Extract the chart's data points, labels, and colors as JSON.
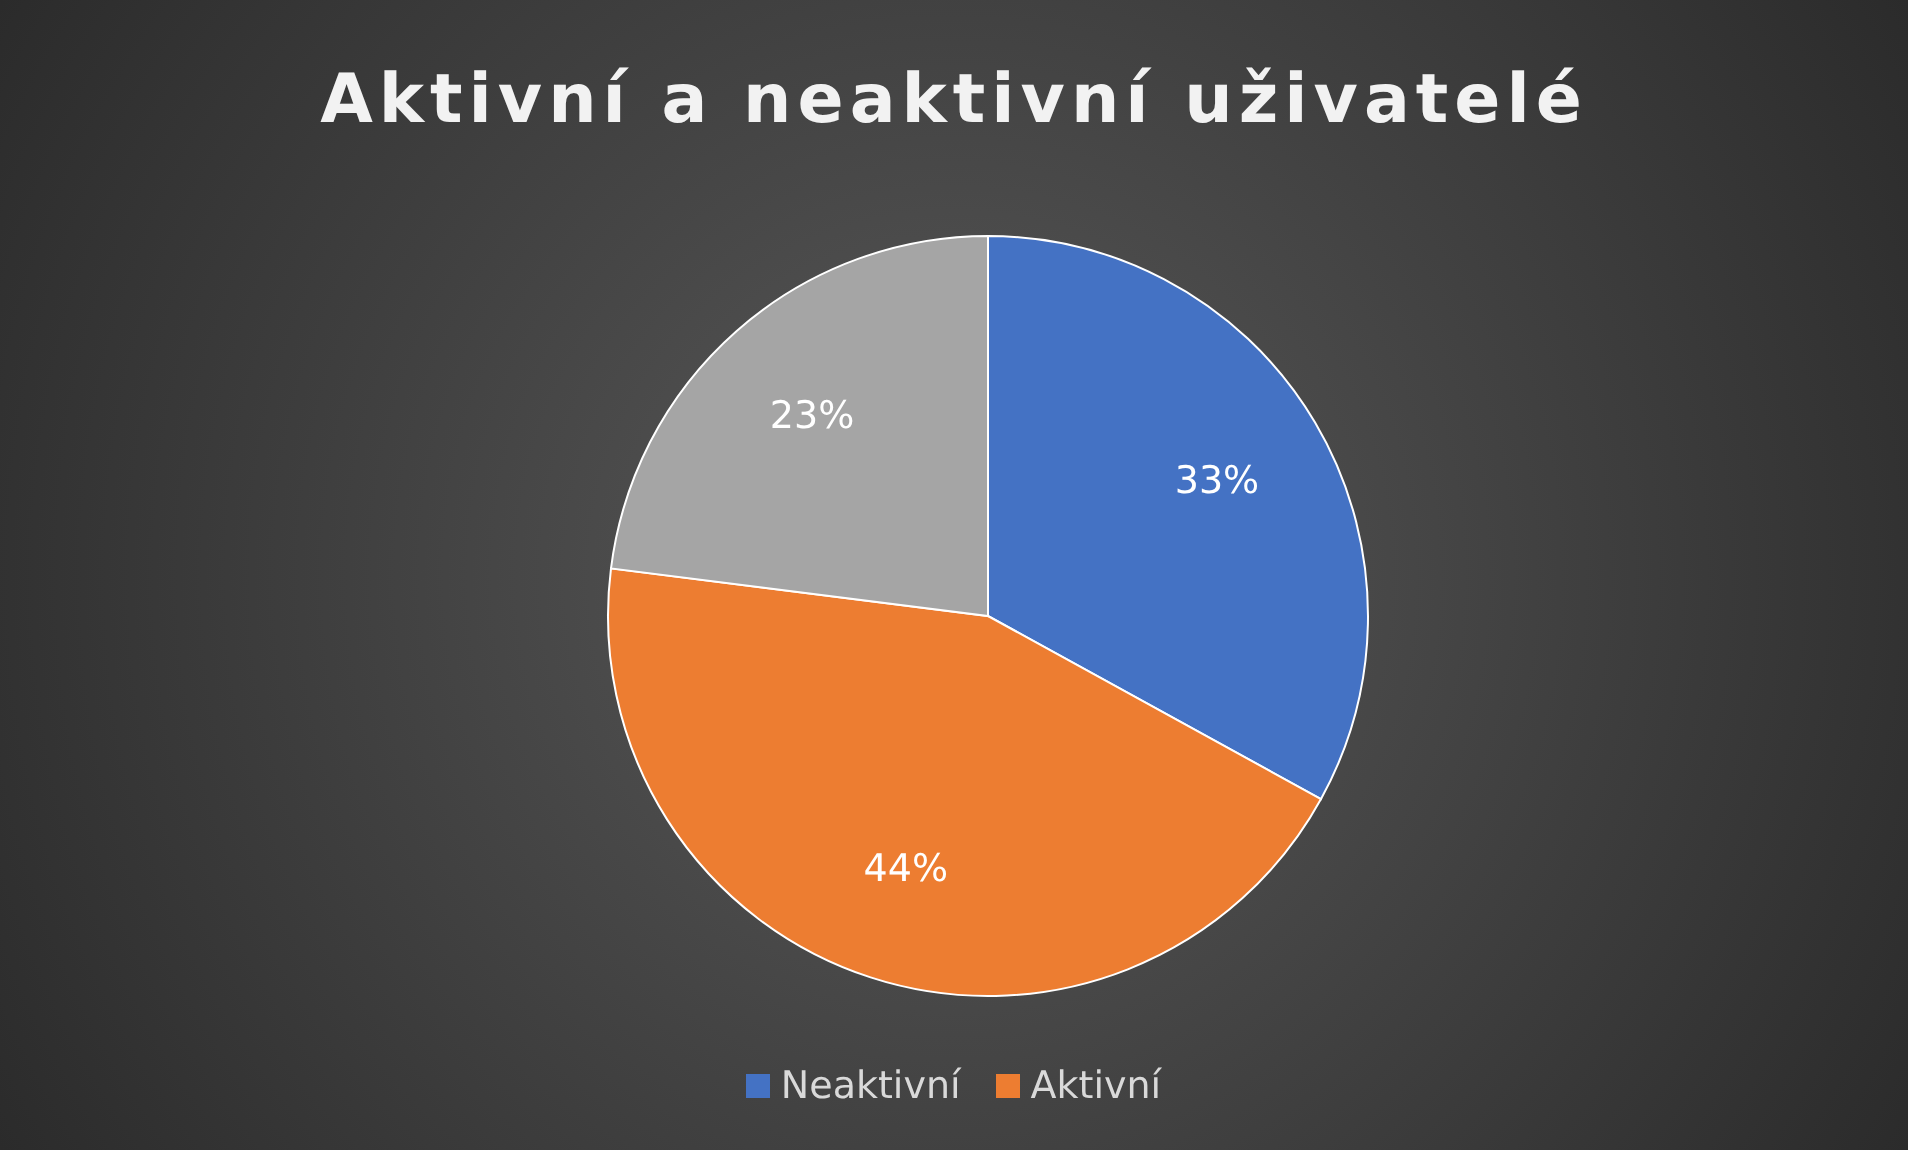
{
  "chart_data": {
    "type": "pie",
    "title": "Aktivní a neaktivní uživatelé",
    "categories": [
      "Neaktivní",
      "Aktivní",
      null
    ],
    "values": [
      33,
      44,
      23
    ],
    "colors": [
      "#4472c4",
      "#ed7d31",
      "#a5a5a5"
    ],
    "value_labels": [
      "33%",
      "44%",
      "23%"
    ],
    "legend": "bottom"
  }
}
